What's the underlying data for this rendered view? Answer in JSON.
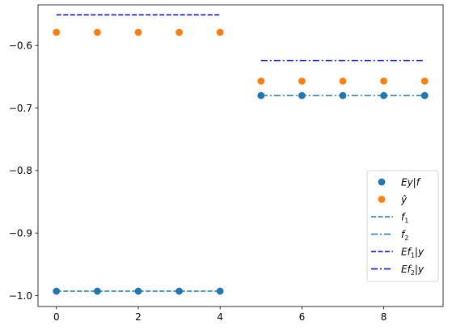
{
  "chart_data": {
    "type": "scatter",
    "xlim": [
      -0.45,
      9.45
    ],
    "ylim": [
      -1.0175,
      -0.535
    ],
    "xticks": [
      0,
      2,
      4,
      6,
      8
    ],
    "xtick_labels": [
      "0",
      "2",
      "4",
      "6",
      "8"
    ],
    "yticks": [
      -1.0,
      -0.9,
      -0.8,
      -0.7,
      -0.6
    ],
    "ytick_labels": [
      "−1.0",
      "−0.9",
      "−0.8",
      "−0.7",
      "−0.6"
    ],
    "grid": false,
    "legend_position": "lower-right",
    "series": [
      {
        "kind": "scatter",
        "name": "Ey|f",
        "color": "#1f77b4",
        "x": [
          0,
          1,
          2,
          3,
          4,
          5,
          6,
          7,
          8,
          9
        ],
        "y": [
          -0.993,
          -0.993,
          -0.993,
          -0.993,
          -0.993,
          -0.68,
          -0.68,
          -0.68,
          -0.68,
          -0.68
        ]
      },
      {
        "kind": "scatter",
        "name": "ŷ",
        "color": "#ff7f0e",
        "x": [
          0,
          1,
          2,
          3,
          4,
          5,
          6,
          7,
          8,
          9
        ],
        "y": [
          -0.579,
          -0.579,
          -0.579,
          -0.579,
          -0.579,
          -0.657,
          -0.657,
          -0.657,
          -0.657,
          -0.657
        ]
      },
      {
        "kind": "line",
        "name": "f1",
        "color": "#1f77b4",
        "dash": "dashed",
        "x": [
          0,
          4
        ],
        "y": [
          -0.993,
          -0.993
        ]
      },
      {
        "kind": "line",
        "name": "f2",
        "color": "#1f77b4",
        "dash": "dashdot",
        "x": [
          5,
          9
        ],
        "y": [
          -0.68,
          -0.68
        ]
      },
      {
        "kind": "line",
        "name": "Ef1|y",
        "color": "#0000cc",
        "dash": "dashed",
        "x": [
          0,
          4
        ],
        "y": [
          -0.551,
          -0.551
        ]
      },
      {
        "kind": "line",
        "name": "Ef2|y",
        "color": "#0000cc",
        "dash": "dashdot",
        "x": [
          5,
          9
        ],
        "y": [
          -0.624,
          -0.624
        ]
      }
    ],
    "legend": [
      {
        "base": "Ey|f",
        "sub": ""
      },
      {
        "base": "ŷ",
        "sub": ""
      },
      {
        "base": "f",
        "sub": "1"
      },
      {
        "base": "f",
        "sub": "2"
      },
      {
        "base": "Ef",
        "sub": "1",
        "tail": "|y"
      },
      {
        "base": "Ef",
        "sub": "2",
        "tail": "|y"
      }
    ]
  }
}
